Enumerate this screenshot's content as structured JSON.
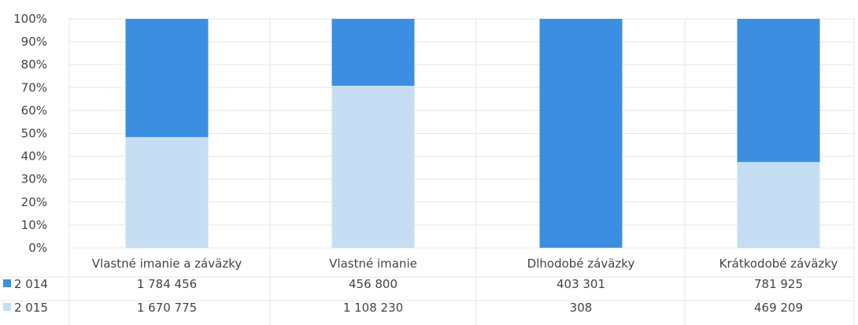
{
  "chart_data": {
    "type": "bar",
    "stacked": true,
    "normalized": "percent",
    "categories": [
      "Vlastné imanie a záväzky",
      "Vlastné imanie",
      "Dlhodobé záväzky",
      "Krátkodobé záväzky"
    ],
    "series": [
      {
        "name": "2 014",
        "values": [
          1784456,
          456800,
          403301,
          781925
        ],
        "value_labels": [
          "1 784 456",
          "456 800",
          "403 301",
          "781 925"
        ],
        "color": "#3c8ee0"
      },
      {
        "name": "2 015",
        "values": [
          1670775,
          1108230,
          308,
          469209
        ],
        "value_labels": [
          "1 670 775",
          "1 108 230",
          "308",
          "469 209"
        ],
        "color": "#c6def3"
      }
    ],
    "y_ticks": [
      "0%",
      "10%",
      "20%",
      "30%",
      "40%",
      "50%",
      "60%",
      "70%",
      "80%",
      "90%",
      "100%"
    ],
    "ylim": [
      0,
      100
    ],
    "grid": true,
    "data_table": true,
    "gridline_color": "#e6e6e6"
  }
}
